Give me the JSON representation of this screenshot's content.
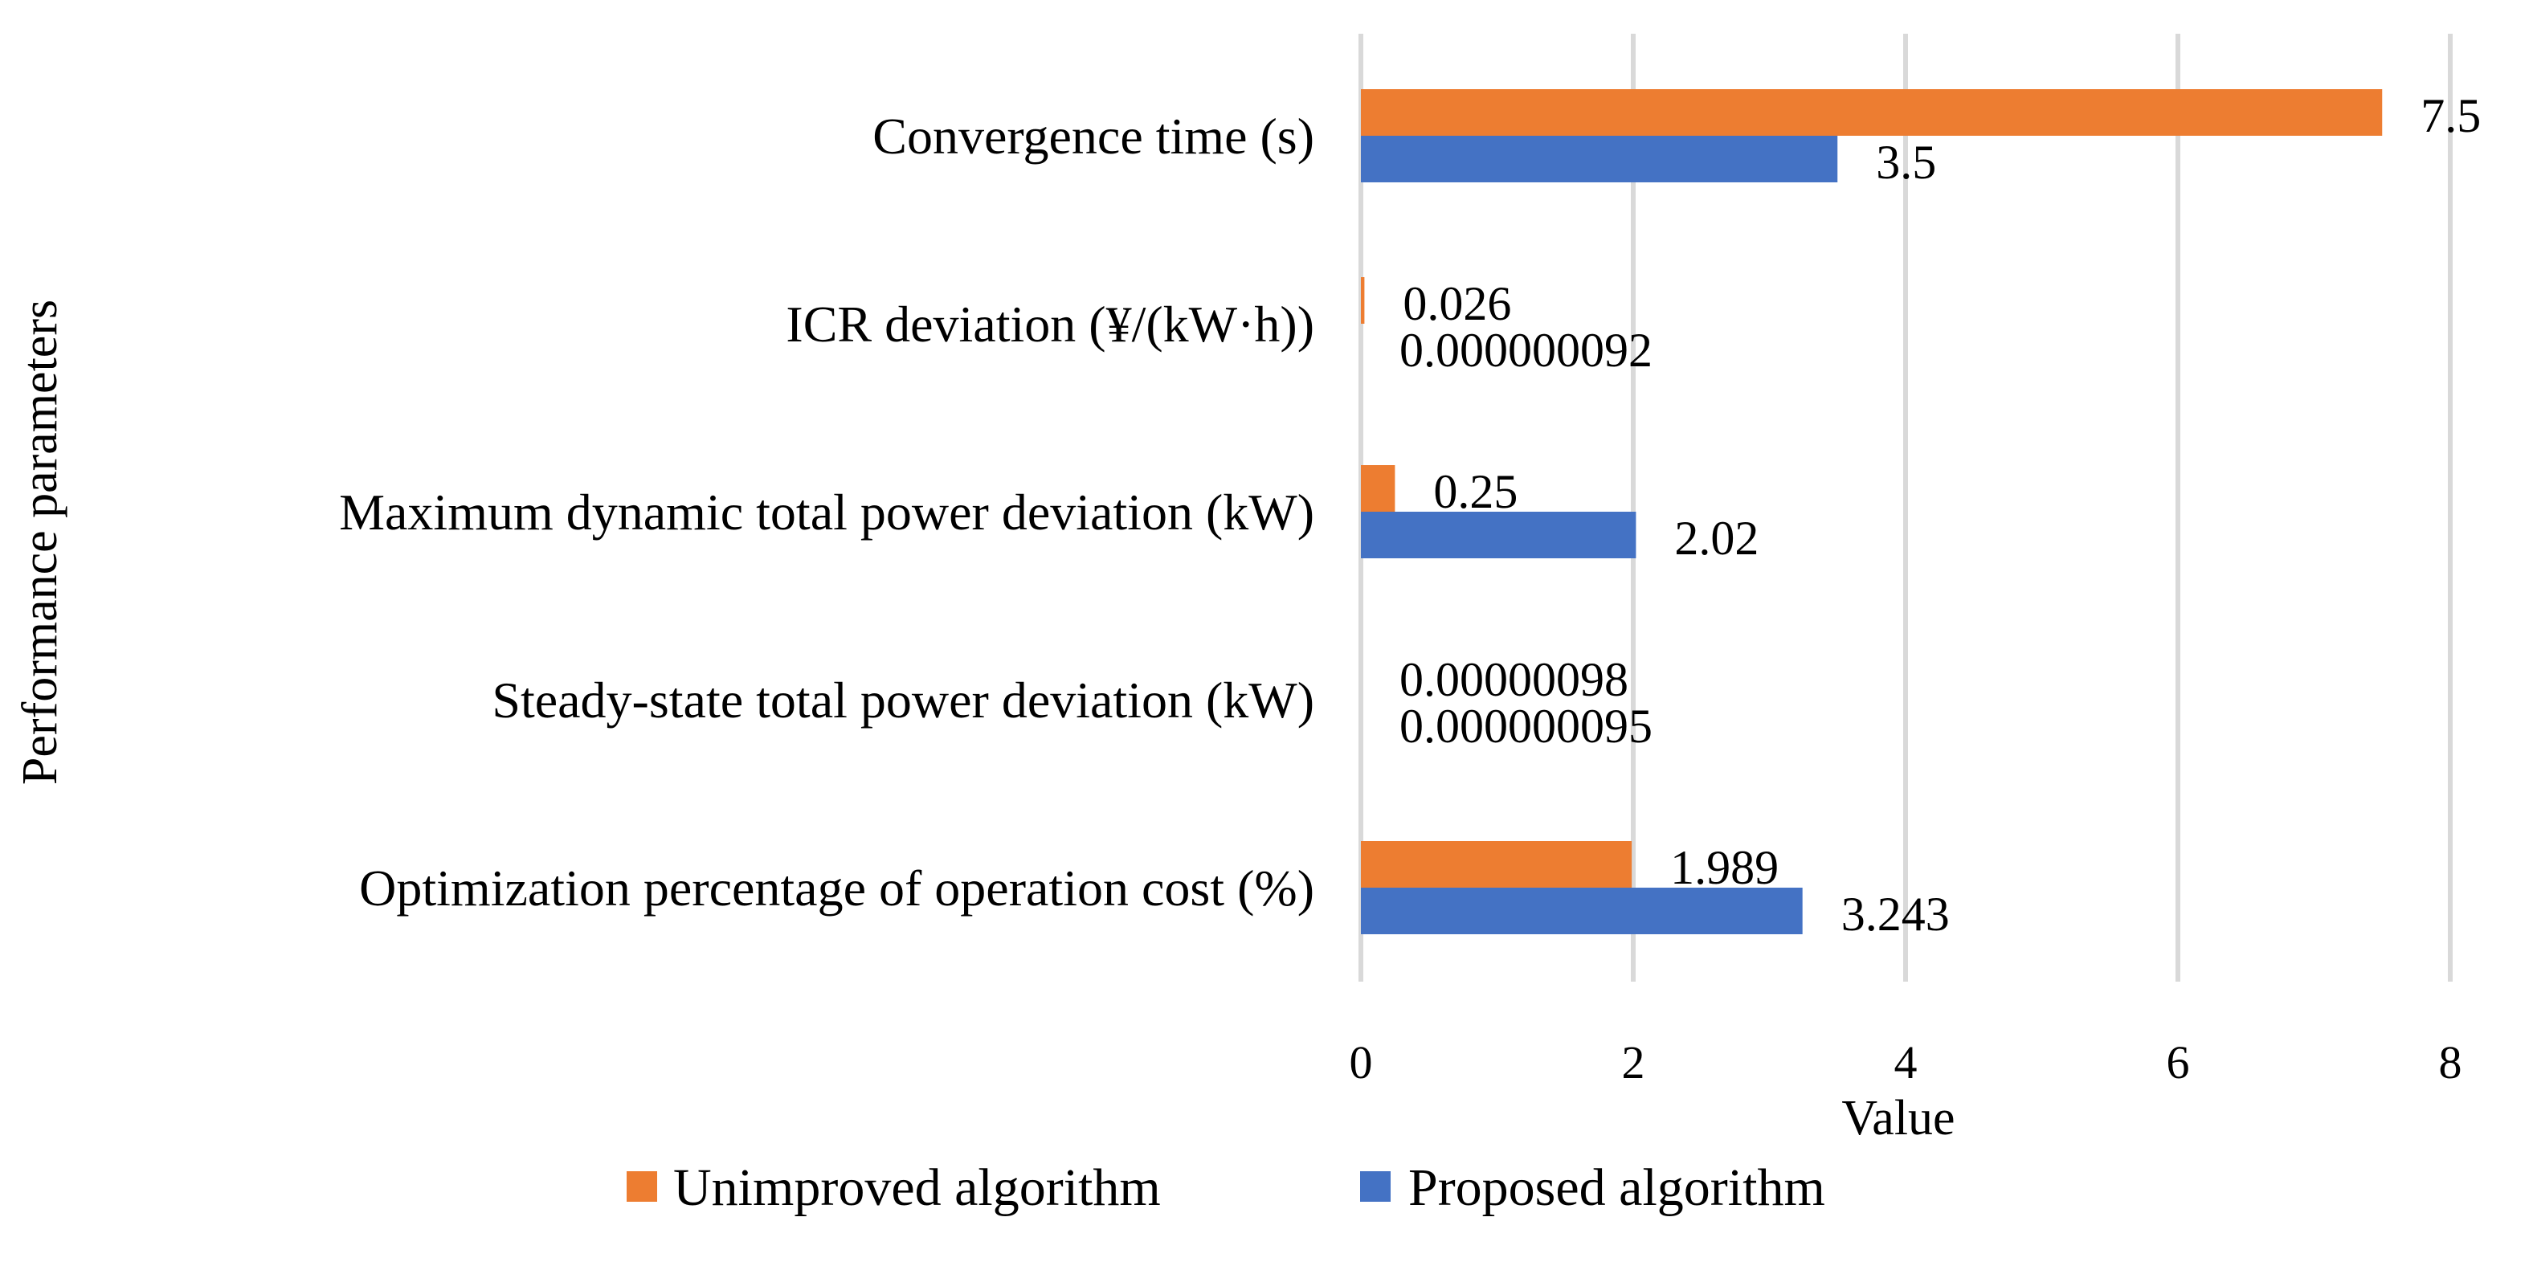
{
  "chart_data": {
    "type": "bar",
    "orientation": "horizontal",
    "categories": [
      "Convergence time (s)",
      "ICR deviation (¥/(kW·h))",
      "Maximum dynamic total power deviation (kW)",
      "Steady-state total power deviation (kW)",
      "Optimization percentage of operation cost (%)"
    ],
    "series": [
      {
        "name": "Unimproved algorithm",
        "color": "#ed7d31",
        "values": [
          7.5,
          0.026,
          0.25,
          9.8e-07,
          1.989
        ],
        "labels": [
          "7.5",
          "0.026",
          "0.25",
          "0.00000098",
          "1.989"
        ]
      },
      {
        "name": "Proposed algorithm",
        "color": "#4472c4",
        "values": [
          3.5,
          9.2e-08,
          2.02,
          9.5e-08,
          3.243
        ],
        "labels": [
          "3.5",
          "0.000000092",
          "2.02",
          "0.000000095",
          "3.243"
        ]
      }
    ],
    "xlim": [
      0,
      8
    ],
    "xticks": [
      "0",
      "2",
      "4",
      "6",
      "8"
    ],
    "xlabel": "Value",
    "ylabel": "Performance parameters",
    "title": "",
    "grid": true,
    "legend_position": "bottom"
  }
}
